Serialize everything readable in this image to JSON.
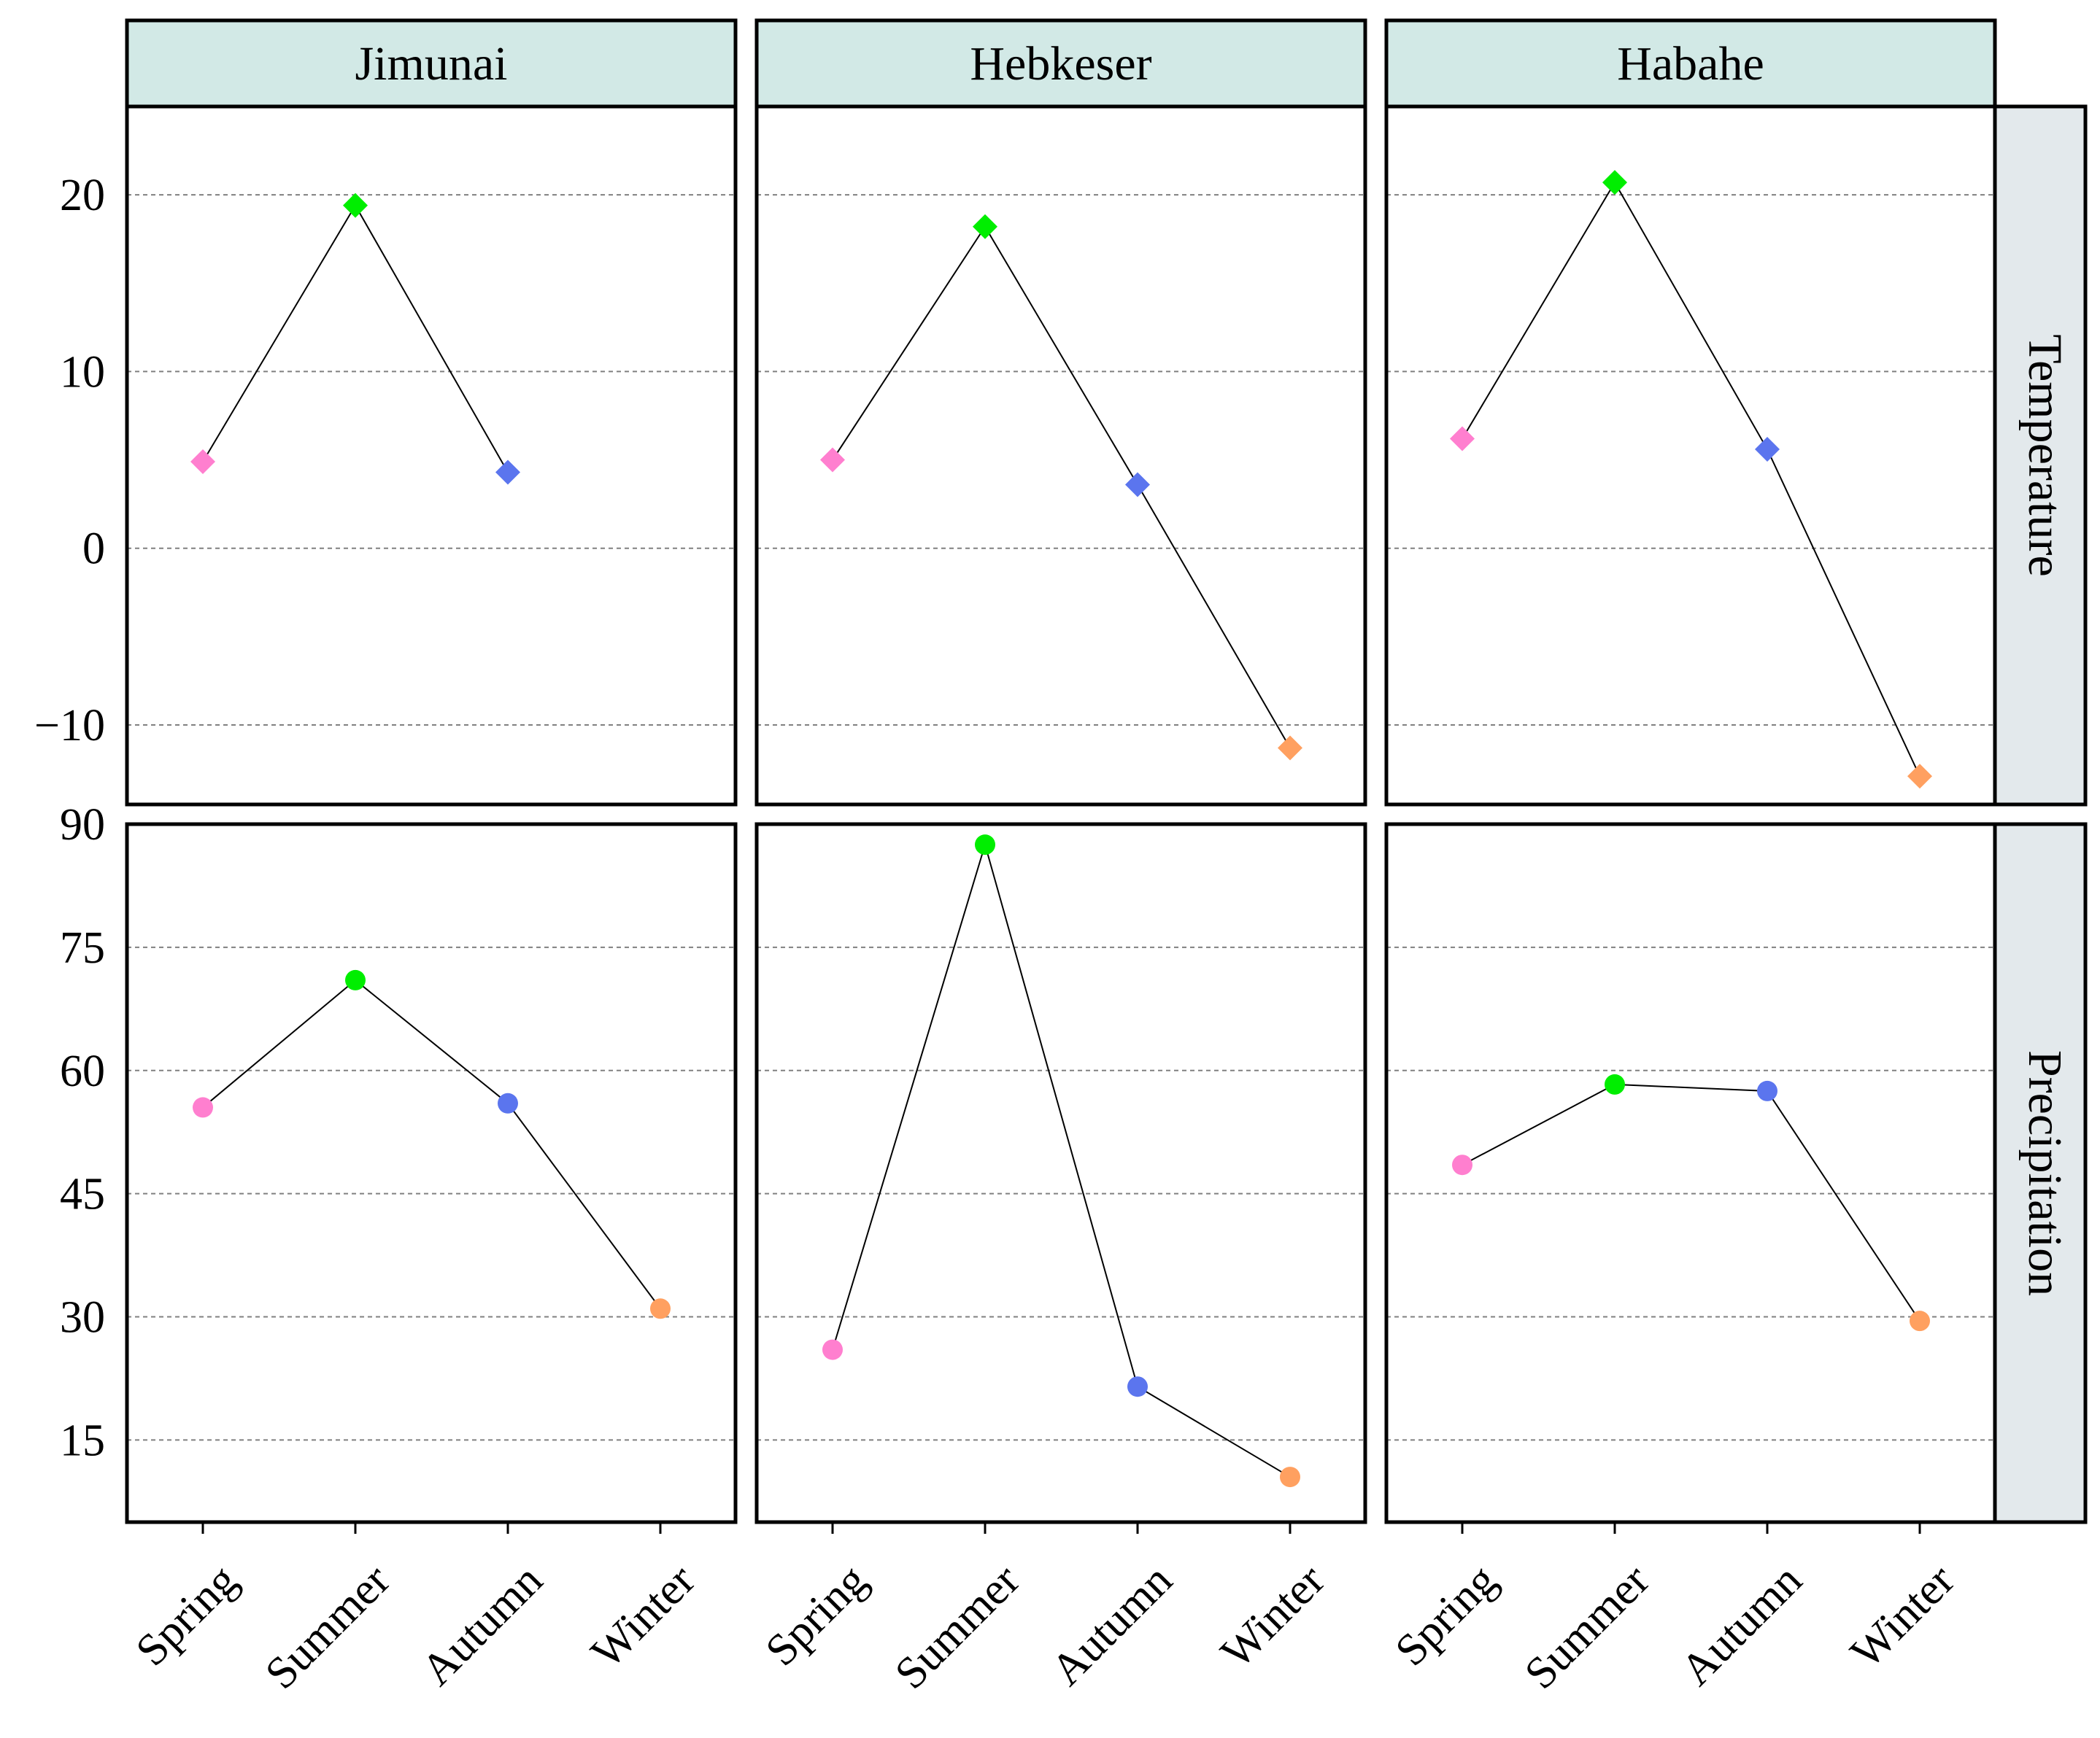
{
  "chart_data": {
    "type": "line",
    "layout": "facet grid (rows = variable, columns = site)",
    "columns": [
      "Jimunai",
      "Hebkeser",
      "Habahe"
    ],
    "rows": [
      "Temperature",
      "Precipitation"
    ],
    "categories": [
      "Spring",
      "Summer",
      "Autumn",
      "Winter"
    ],
    "colors": {
      "Spring": "#ff7fcf",
      "Summer": "#00ee00",
      "Autumn": "#5b75ee",
      "Winter": "#ffa060",
      "strip_fill": "#d2e9e6",
      "row_strip_fill": "#e3e9ec",
      "line": "#000000",
      "grid": "#808080"
    },
    "grid": "horizontal dashed",
    "panels": [
      {
        "row": "Temperature",
        "marker": "diamond",
        "ylim": [
          -14.5,
          25
        ],
        "yticks": [
          -10,
          0,
          10,
          20
        ],
        "series": [
          {
            "site": "Jimunai",
            "values": [
              4.9,
              19.4,
              4.3,
              null
            ]
          },
          {
            "site": "Hebkeser",
            "values": [
              5.0,
              18.2,
              3.6,
              -11.3
            ]
          },
          {
            "site": "Habahe",
            "values": [
              6.2,
              20.7,
              5.6,
              -12.9
            ]
          }
        ]
      },
      {
        "row": "Precipitation",
        "marker": "circle",
        "ylim": [
          5,
          90
        ],
        "yticks": [
          15,
          30,
          45,
          60,
          75,
          90
        ],
        "series": [
          {
            "site": "Jimunai",
            "values": [
              55.5,
              71.0,
              56.0,
              31.0
            ]
          },
          {
            "site": "Hebkeser",
            "values": [
              26.0,
              87.5,
              21.5,
              10.5
            ]
          },
          {
            "site": "Habahe",
            "values": [
              48.5,
              58.3,
              57.5,
              29.5
            ]
          }
        ]
      }
    ]
  }
}
